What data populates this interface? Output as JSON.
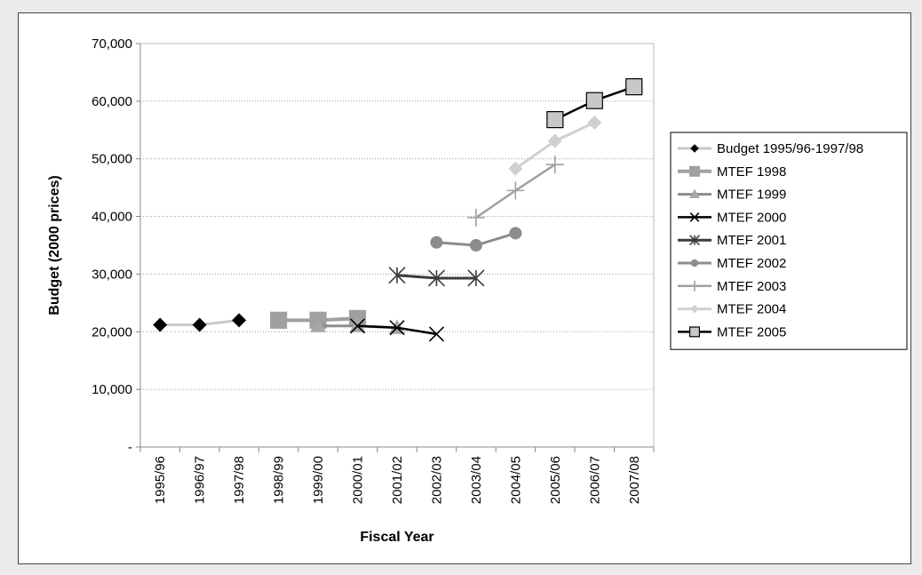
{
  "chart_data": {
    "type": "line",
    "title": "",
    "xlabel": "Fiscal Year",
    "ylabel": "Budget (2000 prices)",
    "ylim": [
      0,
      70000
    ],
    "yticks": [
      0,
      10000,
      20000,
      30000,
      40000,
      50000,
      60000,
      70000
    ],
    "ytick_labels": [
      "-",
      "10,000",
      "20,000",
      "30,000",
      "40,000",
      "50,000",
      "60,000",
      "70,000"
    ],
    "grid": "horizontal dotted",
    "legend_position": "right",
    "categories": [
      "1995/96",
      "1996/97",
      "1997/98",
      "1998/99",
      "1999/00",
      "2000/01",
      "2001/02",
      "2002/03",
      "2003/04",
      "2004/05",
      "2005/06",
      "2006/07",
      "2007/08"
    ],
    "series": [
      {
        "name": "Budget 1995/96-1997/98",
        "color": "#c8c8c8",
        "marker": "diamond",
        "marker_color": "#000000",
        "line_width": 3,
        "values": [
          21200,
          21200,
          22000,
          null,
          null,
          null,
          null,
          null,
          null,
          null,
          null,
          null,
          null
        ]
      },
      {
        "name": "MTEF 1998",
        "color": "#a0a0a0",
        "marker": "square",
        "marker_color": "#a0a0a0",
        "line_width": 4,
        "values": [
          null,
          null,
          null,
          22000,
          22000,
          22300,
          null,
          null,
          null,
          null,
          null,
          null,
          null
        ]
      },
      {
        "name": "MTEF 1999",
        "color": "#8c8c8c",
        "marker": "triangle",
        "marker_color": "#a6a6a6",
        "line_width": 3,
        "values": [
          null,
          null,
          null,
          null,
          21000,
          21000,
          20700,
          null,
          null,
          null,
          null,
          null,
          null
        ]
      },
      {
        "name": "MTEF 2000",
        "color": "#000000",
        "marker": "x",
        "marker_color": "#000000",
        "line_width": 2.5,
        "values": [
          null,
          null,
          null,
          null,
          null,
          21000,
          20700,
          19600,
          null,
          null,
          null,
          null,
          null
        ]
      },
      {
        "name": "MTEF 2001",
        "color": "#3c3c3c",
        "marker": "asterisk",
        "marker_color": "#3c3c3c",
        "line_width": 3,
        "values": [
          null,
          null,
          null,
          null,
          null,
          null,
          29800,
          29300,
          29300,
          null,
          null,
          null,
          null
        ]
      },
      {
        "name": "MTEF 2002",
        "color": "#8c8c8c",
        "marker": "circle",
        "marker_color": "#8c8c8c",
        "line_width": 3,
        "values": [
          null,
          null,
          null,
          null,
          null,
          null,
          null,
          35500,
          35000,
          37100,
          null,
          null,
          null
        ]
      },
      {
        "name": "MTEF 2003",
        "color": "#a0a0a0",
        "marker": "plus",
        "marker_color": "#a0a0a0",
        "line_width": 2.5,
        "values": [
          null,
          null,
          null,
          null,
          null,
          null,
          null,
          null,
          39800,
          44500,
          49000,
          null,
          null
        ]
      },
      {
        "name": "MTEF 2004",
        "color": "#d0d0d0",
        "marker": "diamond",
        "marker_color": "#d0d0d0",
        "line_width": 3,
        "values": [
          null,
          null,
          null,
          null,
          null,
          null,
          null,
          null,
          null,
          48300,
          53100,
          56300,
          null
        ]
      },
      {
        "name": "MTEF 2005",
        "color": "#000000",
        "marker": "square",
        "marker_color": "#c8c8c8",
        "line_width": 2.5,
        "values": [
          null,
          null,
          null,
          null,
          null,
          null,
          null,
          null,
          null,
          null,
          56800,
          60100,
          62500
        ]
      }
    ]
  }
}
